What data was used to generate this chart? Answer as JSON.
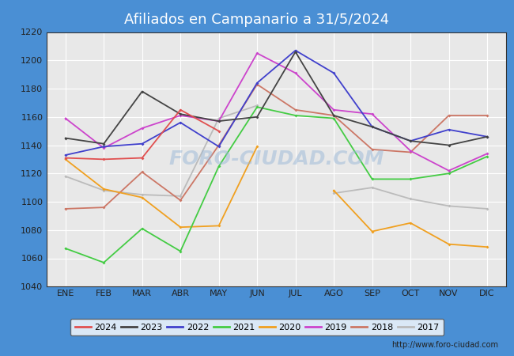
{
  "title": "Afiliados en Campanario a 31/5/2024",
  "ylim": [
    1040,
    1220
  ],
  "yticks": [
    1040,
    1060,
    1080,
    1100,
    1120,
    1140,
    1160,
    1180,
    1200,
    1220
  ],
  "months": [
    "ENE",
    "FEB",
    "MAR",
    "ABR",
    "MAY",
    "JUN",
    "JUL",
    "AGO",
    "SEP",
    "OCT",
    "NOV",
    "DIC"
  ],
  "watermark": "FORO-CIUDAD.COM",
  "url": "http://www.foro-ciudad.com",
  "header_color": "#4a8fd4",
  "outer_bg": "#4a8fd4",
  "plot_bg": "#e8e8e8",
  "grid_color": "#ffffff",
  "inner_border_color": "#333333",
  "series": {
    "2024": {
      "color": "#e05050",
      "values": [
        1131,
        1130,
        1131,
        1165,
        1150,
        null,
        null,
        null,
        null,
        null,
        null,
        null
      ]
    },
    "2023": {
      "color": "#444444",
      "values": [
        1145,
        1141,
        1178,
        1162,
        1157,
        1160,
        1206,
        1161,
        1153,
        1143,
        1140,
        1146
      ]
    },
    "2022": {
      "color": "#4040cc",
      "values": [
        1133,
        1139,
        1141,
        1156,
        1139,
        1184,
        1207,
        1191,
        1153,
        1143,
        1151,
        1146
      ]
    },
    "2021": {
      "color": "#44cc44",
      "values": [
        1067,
        1057,
        1081,
        1065,
        1125,
        1167,
        1161,
        1159,
        1116,
        1116,
        1120,
        1132
      ]
    },
    "2020": {
      "color": "#f0a020",
      "values": [
        1130,
        1109,
        1103,
        1082,
        1083,
        1139,
        null,
        1108,
        1079,
        1085,
        1070,
        1068
      ]
    },
    "2019": {
      "color": "#cc44cc",
      "values": [
        1159,
        1138,
        1152,
        1161,
        1157,
        1205,
        1191,
        1165,
        1162,
        1136,
        1122,
        1134
      ]
    },
    "2018": {
      "color": "#cc7766",
      "values": [
        1095,
        1096,
        1121,
        1101,
        1140,
        1183,
        1165,
        1161,
        1137,
        1135,
        1161,
        1161
      ]
    },
    "2017": {
      "color": "#bbbbbb",
      "values": [
        1118,
        1108,
        1105,
        1104,
        1159,
        1168,
        null,
        1106,
        1110,
        1102,
        1097,
        1095
      ]
    }
  }
}
